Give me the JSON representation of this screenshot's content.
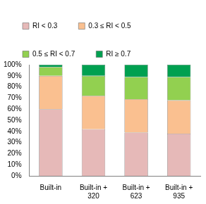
{
  "chart_data": {
    "type": "bar",
    "stacked": true,
    "grid": false,
    "legend": "top",
    "categories": [
      "Built-in",
      "Built-in +\n320",
      "Built-in +\n623",
      "Built-in +\n935"
    ],
    "series": [
      {
        "name": "RI < 0.3",
        "color": "#e6b9b8",
        "values": [
          60,
          42,
          39,
          38
        ]
      },
      {
        "name": "0.3 ≤ RI < 0.5",
        "color": "#fac090",
        "values": [
          30,
          30,
          30,
          30
        ]
      },
      {
        "name": "0.5 ≤ RI < 0.7",
        "color": "#92d050",
        "values": [
          8,
          18,
          20,
          21
        ]
      },
      {
        "name": "RI ≥ 0.7",
        "color": "#00a050",
        "values": [
          2,
          10,
          11,
          11
        ]
      }
    ],
    "ylim": [
      0,
      100
    ],
    "yticks": [
      {
        "value": 0,
        "label": "0%"
      },
      {
        "value": 10,
        "label": "10%"
      },
      {
        "value": 20,
        "label": "20%"
      },
      {
        "value": 30,
        "label": "30%"
      },
      {
        "value": 40,
        "label": "40%"
      },
      {
        "value": 50,
        "label": "50%"
      },
      {
        "value": 60,
        "label": "60%"
      },
      {
        "value": 70,
        "label": "70%"
      },
      {
        "value": 80,
        "label": "80%"
      },
      {
        "value": 90,
        "label": "90%"
      },
      {
        "value": 100,
        "label": "100%"
      }
    ]
  }
}
